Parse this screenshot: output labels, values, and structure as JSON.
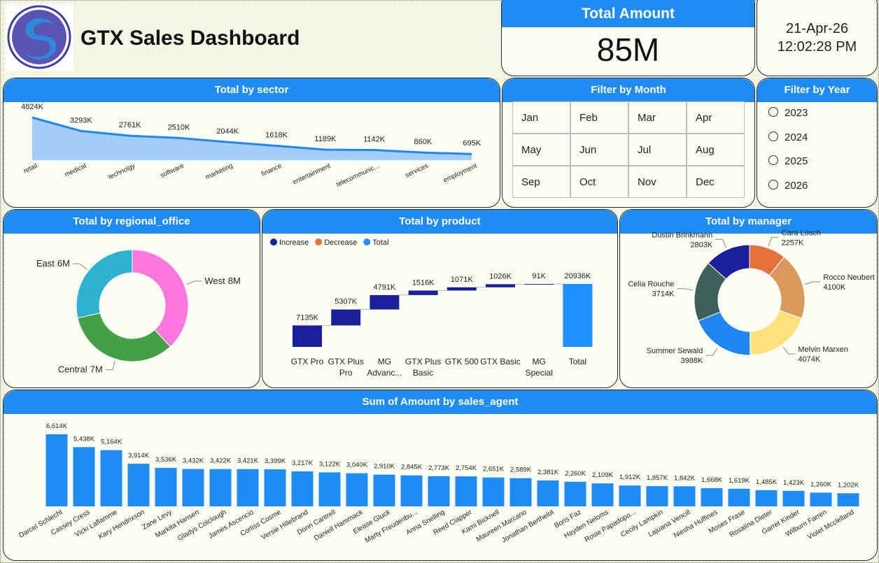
{
  "header": {
    "title": "GTX Sales Dashboard"
  },
  "kpi": {
    "title": "Total Amount",
    "value": "85M"
  },
  "datetime": {
    "date": "21-Apr-26",
    "time": "12:02:28 PM"
  },
  "month_filter": {
    "title": "Filter by Month",
    "months": [
      "Jan",
      "Feb",
      "Mar",
      "Apr",
      "May",
      "Jun",
      "Jul",
      "Aug",
      "Sep",
      "Oct",
      "Nov",
      "Dec"
    ]
  },
  "year_filter": {
    "title": "Filter by Year",
    "years": [
      "2023",
      "2024",
      "2025",
      "2026"
    ]
  },
  "chart_data": [
    {
      "type": "area",
      "title": "Total by sector",
      "categories": [
        "retail",
        "medical",
        "technolgy",
        "software",
        "marketing",
        "finance",
        "entertainment",
        "telecommunic...",
        "services",
        "employment"
      ],
      "values": [
        4824,
        3293,
        2761,
        2510,
        2044,
        1618,
        1189,
        1142,
        860,
        695
      ],
      "value_labels": [
        "4824K",
        "3293K",
        "2761K",
        "2510K",
        "2044K",
        "1618K",
        "1189K",
        "1142K",
        "860K",
        "695K"
      ],
      "color": "#1e88f0",
      "fill": "#a3cdf7"
    },
    {
      "type": "donut",
      "title": "Total by regional_office",
      "categories": [
        "West",
        "Central",
        "East"
      ],
      "values": [
        8,
        7,
        6
      ],
      "value_labels": [
        "8M",
        "7M",
        "6M"
      ],
      "colors": [
        "#ff77dd",
        "#43a047",
        "#2db3d0"
      ]
    },
    {
      "type": "waterfall",
      "title": "Total by product",
      "categories": [
        "GTX Pro",
        "GTX Plus Pro",
        "MG Advanc...",
        "GTX Plus Basic",
        "GTK 500",
        "GTX Basic",
        "MG Special",
        "Total"
      ],
      "values": [
        7135,
        5307,
        4791,
        1516,
        1071,
        1026,
        91,
        20936
      ],
      "value_labels": [
        "7135K",
        "5307K",
        "4791K",
        "1516K",
        "1071K",
        "1026K",
        "91K",
        "20936K"
      ],
      "legend": [
        {
          "name": "Increase",
          "color": "#1a1f9c"
        },
        {
          "name": "Decrease",
          "color": "#e8703a"
        },
        {
          "name": "Total",
          "color": "#1e90ff"
        }
      ]
    },
    {
      "type": "donut",
      "title": "Total by manager",
      "categories": [
        "Cara Losch",
        "Rocco Neubert",
        "Melvin Marxen",
        "Summer Sewald",
        "Celia Rouche",
        "Dustin Brinkmann"
      ],
      "values": [
        2257,
        4100,
        4074,
        3988,
        3714,
        2803
      ],
      "value_labels": [
        "2257K",
        "4100K",
        "4074K",
        "3988K",
        "3714K",
        "2803K"
      ],
      "colors": [
        "#e8703a",
        "#d99a5e",
        "#ffe07a",
        "#1e88f0",
        "#3e5f5a",
        "#1a1f9c"
      ]
    },
    {
      "type": "bar",
      "title": "Sum of Amount by sales_agent",
      "categories": [
        "Darcel Schlecht",
        "Cassey Cress",
        "Vicki Laflamme",
        "Kary Hendrixson",
        "Zane Levy",
        "Markita Hansen",
        "Gladys Colclough",
        "James Ascencio",
        "Corliss Cosme",
        "Versie Hillebrand",
        "Donn Cantrell",
        "Daniell Hammack",
        "Elease Gluck",
        "Marty Freudenbu...",
        "Anna Snelling",
        "Reed Clapper",
        "Kami Bicknell",
        "Maureen Marcano",
        "Jonathan Berthelot",
        "Boris Faz",
        "Hayden Neloms",
        "Rosie Papadopo...",
        "Cecily Lampkin",
        "Lajuana Vencill",
        "Niesha Huffines",
        "Moses Frase",
        "Rosalina Dieter",
        "Garret Kinder",
        "Wilburn Farren",
        "Violet Mcclelland"
      ],
      "values": [
        6614,
        5438,
        5164,
        3914,
        3536,
        3432,
        3422,
        3421,
        3399,
        3217,
        3122,
        3040,
        2910,
        2845,
        2773,
        2754,
        2651,
        2589,
        2381,
        2260,
        2109,
        1912,
        1857,
        1842,
        1668,
        1619,
        1485,
        1423,
        1260,
        1202
      ],
      "value_labels": [
        "6,614K",
        "5,438K",
        "5,164K",
        "3,914K",
        "3,536K",
        "3,432K",
        "3,422K",
        "3,421K",
        "3,399K",
        "3,217K",
        "3,122K",
        "3,040K",
        "2,910K",
        "2,845K",
        "2,773K",
        "2,754K",
        "2,651K",
        "2,589K",
        "2,381K",
        "2,260K",
        "2,109K",
        "1,912K",
        "1,857K",
        "1,842K",
        "1,668K",
        "1,619K",
        "1,485K",
        "1,423K",
        "1,260K",
        "1,202K"
      ],
      "color": "#1e8cf5"
    }
  ]
}
